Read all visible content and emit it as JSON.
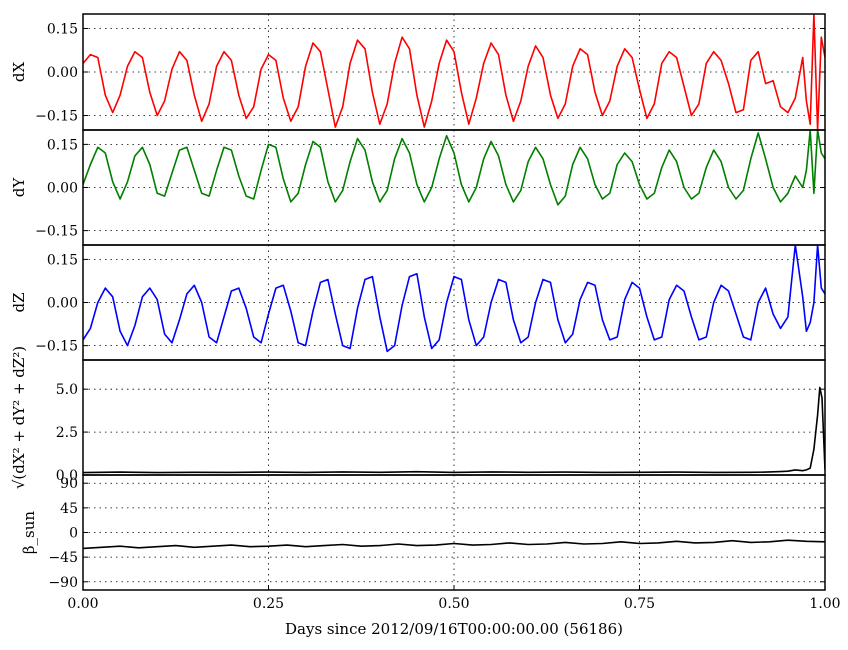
{
  "chart_data": [
    {
      "type": "line",
      "ylabel": "dX",
      "color": "#ff0000",
      "xlim": [
        0,
        1
      ],
      "ylim": [
        -0.2,
        0.2
      ],
      "yticks": [
        0.15,
        0.0,
        -0.15
      ],
      "ytick_labels": [
        "0.15",
        "0.00",
        "−0.15"
      ],
      "grid": true,
      "series": [
        {
          "x": [
            0.0,
            0.01,
            0.02,
            0.03,
            0.04,
            0.05,
            0.06,
            0.07,
            0.08,
            0.09,
            0.1,
            0.11,
            0.12,
            0.13,
            0.14,
            0.15,
            0.16,
            0.17,
            0.18,
            0.19,
            0.2,
            0.21,
            0.22,
            0.23,
            0.24,
            0.25,
            0.26,
            0.27,
            0.28,
            0.29,
            0.3,
            0.31,
            0.32,
            0.33,
            0.34,
            0.35,
            0.36,
            0.37,
            0.38,
            0.39,
            0.4,
            0.41,
            0.42,
            0.43,
            0.44,
            0.45,
            0.46,
            0.47,
            0.48,
            0.49,
            0.5,
            0.51,
            0.52,
            0.53,
            0.54,
            0.55,
            0.56,
            0.57,
            0.58,
            0.59,
            0.6,
            0.61,
            0.62,
            0.63,
            0.64,
            0.65,
            0.66,
            0.67,
            0.68,
            0.69,
            0.7,
            0.71,
            0.72,
            0.73,
            0.74,
            0.75,
            0.76,
            0.77,
            0.78,
            0.79,
            0.8,
            0.81,
            0.82,
            0.83,
            0.84,
            0.85,
            0.86,
            0.87,
            0.88,
            0.89,
            0.9,
            0.91,
            0.92,
            0.93,
            0.94,
            0.95,
            0.96,
            0.97,
            0.975,
            0.98,
            0.985,
            0.99,
            0.995,
            1.0
          ],
          "y": [
            0.03,
            0.06,
            0.05,
            -0.08,
            -0.14,
            -0.08,
            0.02,
            0.07,
            0.05,
            -0.07,
            -0.15,
            -0.1,
            0.01,
            0.07,
            0.04,
            -0.08,
            -0.17,
            -0.11,
            0.02,
            0.07,
            0.04,
            -0.08,
            -0.16,
            -0.12,
            0.01,
            0.06,
            0.04,
            -0.09,
            -0.17,
            -0.12,
            0.02,
            0.1,
            0.07,
            -0.06,
            -0.19,
            -0.12,
            0.03,
            0.11,
            0.08,
            -0.07,
            -0.18,
            -0.11,
            0.03,
            0.12,
            0.08,
            -0.08,
            -0.19,
            -0.1,
            0.03,
            0.11,
            0.07,
            -0.07,
            -0.18,
            -0.09,
            0.03,
            0.1,
            0.06,
            -0.08,
            -0.17,
            -0.1,
            0.02,
            0.09,
            0.05,
            -0.08,
            -0.16,
            -0.11,
            0.02,
            0.08,
            0.06,
            -0.07,
            -0.15,
            -0.1,
            0.02,
            0.08,
            0.05,
            -0.06,
            -0.16,
            -0.11,
            0.03,
            0.07,
            0.05,
            -0.05,
            -0.15,
            -0.11,
            0.03,
            0.07,
            0.04,
            -0.04,
            -0.14,
            -0.13,
            0.04,
            0.07,
            -0.04,
            -0.03,
            -0.12,
            -0.14,
            -0.09,
            0.05,
            -0.1,
            -0.18,
            0.2,
            -0.2,
            0.12,
            0.05
          ]
        }
      ]
    },
    {
      "type": "line",
      "ylabel": "dY",
      "color": "#007f00",
      "xlim": [
        0,
        1
      ],
      "ylim": [
        -0.2,
        0.2
      ],
      "yticks": [
        0.15,
        0.0,
        -0.15
      ],
      "ytick_labels": [
        "0.15",
        "0.00",
        "−0.15"
      ],
      "grid": true,
      "series": [
        {
          "x": [
            0.0,
            0.01,
            0.02,
            0.03,
            0.04,
            0.05,
            0.06,
            0.07,
            0.08,
            0.09,
            0.1,
            0.11,
            0.12,
            0.13,
            0.14,
            0.15,
            0.16,
            0.17,
            0.18,
            0.19,
            0.2,
            0.21,
            0.22,
            0.23,
            0.24,
            0.25,
            0.26,
            0.27,
            0.28,
            0.29,
            0.3,
            0.31,
            0.32,
            0.33,
            0.34,
            0.35,
            0.36,
            0.37,
            0.38,
            0.39,
            0.4,
            0.41,
            0.42,
            0.43,
            0.44,
            0.45,
            0.46,
            0.47,
            0.48,
            0.49,
            0.5,
            0.51,
            0.52,
            0.53,
            0.54,
            0.55,
            0.56,
            0.57,
            0.58,
            0.59,
            0.6,
            0.61,
            0.62,
            0.63,
            0.64,
            0.65,
            0.66,
            0.67,
            0.68,
            0.69,
            0.7,
            0.71,
            0.72,
            0.73,
            0.74,
            0.75,
            0.76,
            0.77,
            0.78,
            0.79,
            0.8,
            0.81,
            0.82,
            0.83,
            0.84,
            0.85,
            0.86,
            0.87,
            0.88,
            0.89,
            0.9,
            0.91,
            0.92,
            0.93,
            0.94,
            0.95,
            0.96,
            0.97,
            0.975,
            0.98,
            0.985,
            0.99,
            0.995,
            1.0
          ],
          "y": [
            0.01,
            0.08,
            0.14,
            0.12,
            0.02,
            -0.04,
            0.02,
            0.11,
            0.14,
            0.08,
            -0.02,
            -0.03,
            0.05,
            0.13,
            0.14,
            0.06,
            -0.02,
            -0.03,
            0.06,
            0.14,
            0.13,
            0.04,
            -0.03,
            -0.04,
            0.06,
            0.15,
            0.14,
            0.03,
            -0.05,
            -0.02,
            0.08,
            0.16,
            0.14,
            0.02,
            -0.05,
            -0.01,
            0.09,
            0.17,
            0.13,
            0.02,
            -0.05,
            -0.01,
            0.1,
            0.17,
            0.12,
            0.01,
            -0.05,
            0.0,
            0.1,
            0.18,
            0.12,
            0.01,
            -0.05,
            0.0,
            0.1,
            0.16,
            0.11,
            0.01,
            -0.05,
            -0.01,
            0.09,
            0.14,
            0.1,
            0.01,
            -0.06,
            -0.03,
            0.08,
            0.14,
            0.1,
            0.01,
            -0.04,
            -0.02,
            0.08,
            0.12,
            0.09,
            0.01,
            -0.04,
            -0.02,
            0.07,
            0.13,
            0.09,
            0.0,
            -0.04,
            -0.02,
            0.07,
            0.13,
            0.09,
            0.0,
            -0.04,
            -0.01,
            0.1,
            0.19,
            0.1,
            0.0,
            -0.05,
            -0.02,
            0.04,
            0.0,
            0.06,
            0.2,
            -0.02,
            0.2,
            0.12,
            0.1
          ]
        }
      ]
    },
    {
      "type": "line",
      "ylabel": "dZ",
      "color": "#0000ff",
      "xlim": [
        0,
        1
      ],
      "ylim": [
        -0.2,
        0.2
      ],
      "yticks": [
        0.15,
        0.0,
        -0.15
      ],
      "ytick_labels": [
        "0.15",
        "0.00",
        "−0.15"
      ],
      "grid": true,
      "series": [
        {
          "x": [
            0.0,
            0.01,
            0.02,
            0.03,
            0.04,
            0.05,
            0.06,
            0.07,
            0.08,
            0.09,
            0.1,
            0.11,
            0.12,
            0.13,
            0.14,
            0.15,
            0.16,
            0.17,
            0.18,
            0.19,
            0.2,
            0.21,
            0.22,
            0.23,
            0.24,
            0.25,
            0.26,
            0.27,
            0.28,
            0.29,
            0.3,
            0.31,
            0.32,
            0.33,
            0.34,
            0.35,
            0.36,
            0.37,
            0.38,
            0.39,
            0.4,
            0.41,
            0.42,
            0.43,
            0.44,
            0.45,
            0.46,
            0.47,
            0.48,
            0.49,
            0.5,
            0.51,
            0.52,
            0.53,
            0.54,
            0.55,
            0.56,
            0.57,
            0.58,
            0.59,
            0.6,
            0.61,
            0.62,
            0.63,
            0.64,
            0.65,
            0.66,
            0.67,
            0.68,
            0.69,
            0.7,
            0.71,
            0.72,
            0.73,
            0.74,
            0.75,
            0.76,
            0.77,
            0.78,
            0.79,
            0.8,
            0.81,
            0.82,
            0.83,
            0.84,
            0.85,
            0.86,
            0.87,
            0.88,
            0.89,
            0.9,
            0.91,
            0.92,
            0.93,
            0.94,
            0.95,
            0.96,
            0.97,
            0.975,
            0.98,
            0.985,
            0.99,
            0.995,
            1.0
          ],
          "y": [
            -0.13,
            -0.09,
            0.0,
            0.05,
            0.02,
            -0.1,
            -0.15,
            -0.08,
            0.02,
            0.05,
            0.01,
            -0.11,
            -0.14,
            -0.06,
            0.03,
            0.06,
            0.0,
            -0.12,
            -0.14,
            -0.05,
            0.04,
            0.05,
            -0.02,
            -0.12,
            -0.14,
            -0.04,
            0.05,
            0.06,
            -0.03,
            -0.14,
            -0.15,
            -0.03,
            0.07,
            0.08,
            -0.04,
            -0.15,
            -0.16,
            -0.02,
            0.08,
            0.09,
            -0.05,
            -0.17,
            -0.15,
            -0.01,
            0.09,
            0.1,
            -0.05,
            -0.16,
            -0.13,
            0.0,
            0.09,
            0.08,
            -0.06,
            -0.15,
            -0.12,
            0.0,
            0.08,
            0.07,
            -0.06,
            -0.14,
            -0.12,
            0.0,
            0.08,
            0.07,
            -0.06,
            -0.14,
            -0.11,
            0.01,
            0.07,
            0.06,
            -0.06,
            -0.13,
            -0.12,
            0.01,
            0.07,
            0.05,
            -0.05,
            -0.13,
            -0.12,
            0.01,
            0.06,
            0.04,
            -0.05,
            -0.13,
            -0.12,
            0.0,
            0.06,
            0.04,
            -0.04,
            -0.12,
            -0.13,
            0.0,
            0.05,
            -0.04,
            -0.09,
            -0.05,
            0.2,
            0.02,
            -0.1,
            -0.07,
            0.0,
            0.2,
            0.05,
            0.03
          ]
        }
      ]
    },
    {
      "type": "line",
      "ylabel": "√(dX² + dY² + dZ²)",
      "color": "#000000",
      "xlim": [
        0,
        1
      ],
      "ylim": [
        0,
        6.7
      ],
      "yticks": [
        5.0,
        2.5,
        0.0
      ],
      "ytick_labels": [
        "5.0",
        "2.5",
        "0.0"
      ],
      "grid": true,
      "series": [
        {
          "x": [
            0.0,
            0.05,
            0.1,
            0.15,
            0.2,
            0.25,
            0.3,
            0.35,
            0.4,
            0.45,
            0.5,
            0.55,
            0.6,
            0.65,
            0.7,
            0.75,
            0.8,
            0.85,
            0.9,
            0.92,
            0.94,
            0.95,
            0.96,
            0.97,
            0.975,
            0.98,
            0.985,
            0.99,
            0.993,
            0.996,
            1.0
          ],
          "y": [
            0.14,
            0.17,
            0.14,
            0.16,
            0.15,
            0.17,
            0.15,
            0.18,
            0.16,
            0.19,
            0.15,
            0.18,
            0.16,
            0.17,
            0.15,
            0.16,
            0.17,
            0.15,
            0.16,
            0.17,
            0.2,
            0.22,
            0.3,
            0.25,
            0.3,
            0.4,
            1.5,
            3.5,
            5.1,
            4.5,
            0.3
          ]
        }
      ]
    },
    {
      "type": "line",
      "ylabel": "β_sun",
      "color": "#000000",
      "xlim": [
        0,
        1
      ],
      "ylim": [
        -105,
        105
      ],
      "yticks": [
        90,
        45,
        0,
        -45,
        -90
      ],
      "ytick_labels": [
        "90",
        "45",
        "0",
        "−45",
        "−90"
      ],
      "grid": true,
      "xticks": [
        0.0,
        0.25,
        0.5,
        0.75,
        1.0
      ],
      "xtick_labels": [
        "0.00",
        "0.25",
        "0.50",
        "0.75",
        "1.00"
      ],
      "xlabel": "Days since 2012/09/16T00:00:00.00 (56186)",
      "series": [
        {
          "x": [
            0.0,
            0.025,
            0.05,
            0.075,
            0.1,
            0.125,
            0.15,
            0.175,
            0.2,
            0.225,
            0.25,
            0.275,
            0.3,
            0.325,
            0.35,
            0.375,
            0.4,
            0.425,
            0.45,
            0.475,
            0.5,
            0.525,
            0.55,
            0.575,
            0.6,
            0.625,
            0.65,
            0.675,
            0.7,
            0.725,
            0.75,
            0.775,
            0.8,
            0.825,
            0.85,
            0.875,
            0.9,
            0.925,
            0.95,
            0.975,
            1.0
          ],
          "y": [
            -29,
            -27,
            -25,
            -28,
            -26,
            -24,
            -27,
            -25,
            -23,
            -26,
            -25,
            -23,
            -26,
            -24,
            -22,
            -25,
            -24,
            -21,
            -24,
            -23,
            -20,
            -23,
            -22,
            -19,
            -22,
            -21,
            -18,
            -21,
            -20,
            -17,
            -20,
            -19,
            -16,
            -19,
            -18,
            -15,
            -18,
            -17,
            -14,
            -16,
            -17
          ]
        }
      ]
    }
  ]
}
